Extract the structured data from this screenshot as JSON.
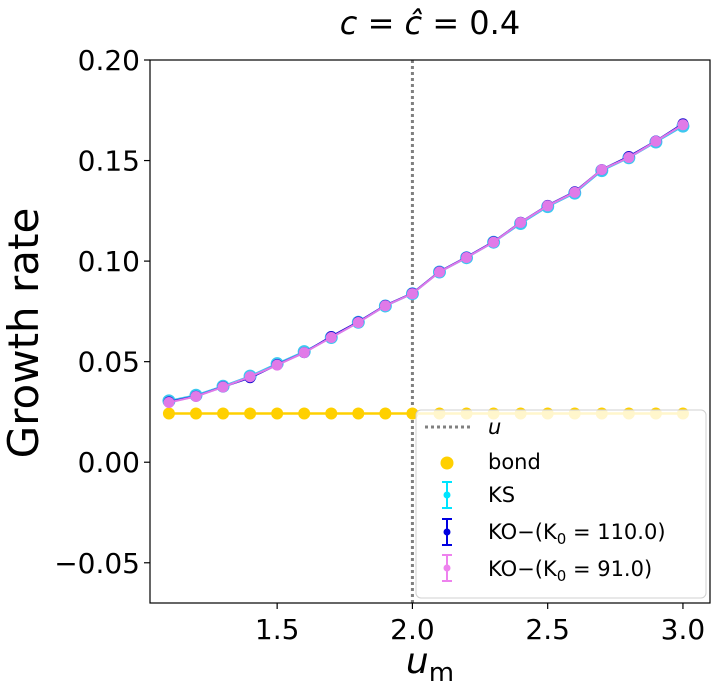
{
  "chart_data": {
    "type": "line",
    "title": "c = ĉ = 0.4",
    "title_parts": {
      "c": "c",
      "eq1": " = ",
      "chat": "ĉ",
      "eq2": " = 0.4"
    },
    "xlabel": {
      "base": "u",
      "sub": "m"
    },
    "ylabel": "Growth rate",
    "xlim": [
      1.03,
      3.1
    ],
    "ylim": [
      -0.07,
      0.2
    ],
    "xticks": [
      1.5,
      2.0,
      2.5,
      3.0
    ],
    "xtick_labels": [
      "1.5",
      "2.0",
      "2.5",
      "3.0"
    ],
    "yticks": [
      -0.05,
      0.0,
      0.05,
      0.1,
      0.15,
      0.2
    ],
    "ytick_labels": [
      "−0.05",
      "0.00",
      "0.05",
      "0.10",
      "0.15",
      "0.20"
    ],
    "x": [
      1.1,
      1.2,
      1.3,
      1.4,
      1.5,
      1.6,
      1.7,
      1.8,
      1.9,
      2.0,
      2.1,
      2.2,
      2.3,
      2.4,
      2.5,
      2.6,
      2.7,
      2.8,
      2.9,
      3.0
    ],
    "vline": {
      "x": 2.0,
      "label": "u",
      "color": "#808080"
    },
    "series": [
      {
        "name": "bond",
        "color": "#ffd000",
        "kind": "scatter-line",
        "values": [
          0.0242,
          0.0242,
          0.0242,
          0.0242,
          0.0242,
          0.0242,
          0.0242,
          0.0242,
          0.0242,
          0.0242,
          0.0242,
          0.0242,
          0.0242,
          0.0242,
          0.0242,
          0.0242,
          0.0242,
          0.0242,
          0.0242,
          0.0242
        ]
      },
      {
        "name": "KS",
        "color": "#3cc8f0",
        "kind": "errorbar",
        "values": [
          0.0305,
          0.0333,
          0.0378,
          0.0428,
          0.049,
          0.055,
          0.062,
          0.0696,
          0.0777,
          0.0838,
          0.0946,
          0.1017,
          0.1094,
          0.1187,
          0.1271,
          0.1338,
          0.145,
          0.1514,
          0.1592,
          0.1671
        ]
      },
      {
        "name": "KO−(K₀=110.0)",
        "color": "#1a10d0",
        "kind": "errorbar",
        "values": [
          0.03,
          0.0328,
          0.0375,
          0.042,
          0.0485,
          0.0545,
          0.0625,
          0.0698,
          0.078,
          0.084,
          0.0948,
          0.102,
          0.1096,
          0.1193,
          0.1277,
          0.1345,
          0.1455,
          0.152,
          0.1597,
          0.1683
        ]
      },
      {
        "name": "KO−(K₀=91.0)",
        "color": "#e07ae8",
        "kind": "errorbar",
        "values": [
          0.0297,
          0.0327,
          0.0374,
          0.0425,
          0.0483,
          0.0545,
          0.062,
          0.0695,
          0.0778,
          0.0838,
          0.0946,
          0.1018,
          0.1094,
          0.1192,
          0.1275,
          0.1342,
          0.1455,
          0.1515,
          0.1596,
          0.1678
        ]
      }
    ],
    "legend": {
      "placement": "lower-right",
      "entries": [
        {
          "label": "u",
          "marker": "dotted-line",
          "color": "#808080"
        },
        {
          "label": "bond",
          "marker": "dot",
          "color": "#ffd000"
        },
        {
          "label": "KS",
          "marker": "errorbar",
          "color": "#00e5ff"
        },
        {
          "label_base": "KO",
          "label_rest": "−(K",
          "label_sub": "0",
          "label_end": " = 110.0)",
          "marker": "errorbar",
          "color": "#0000e0"
        },
        {
          "label_base": "KO",
          "label_rest": "−(K",
          "label_sub": "0",
          "label_end": " = 91.0)",
          "marker": "errorbar",
          "color": "#ee82ee"
        }
      ]
    }
  }
}
